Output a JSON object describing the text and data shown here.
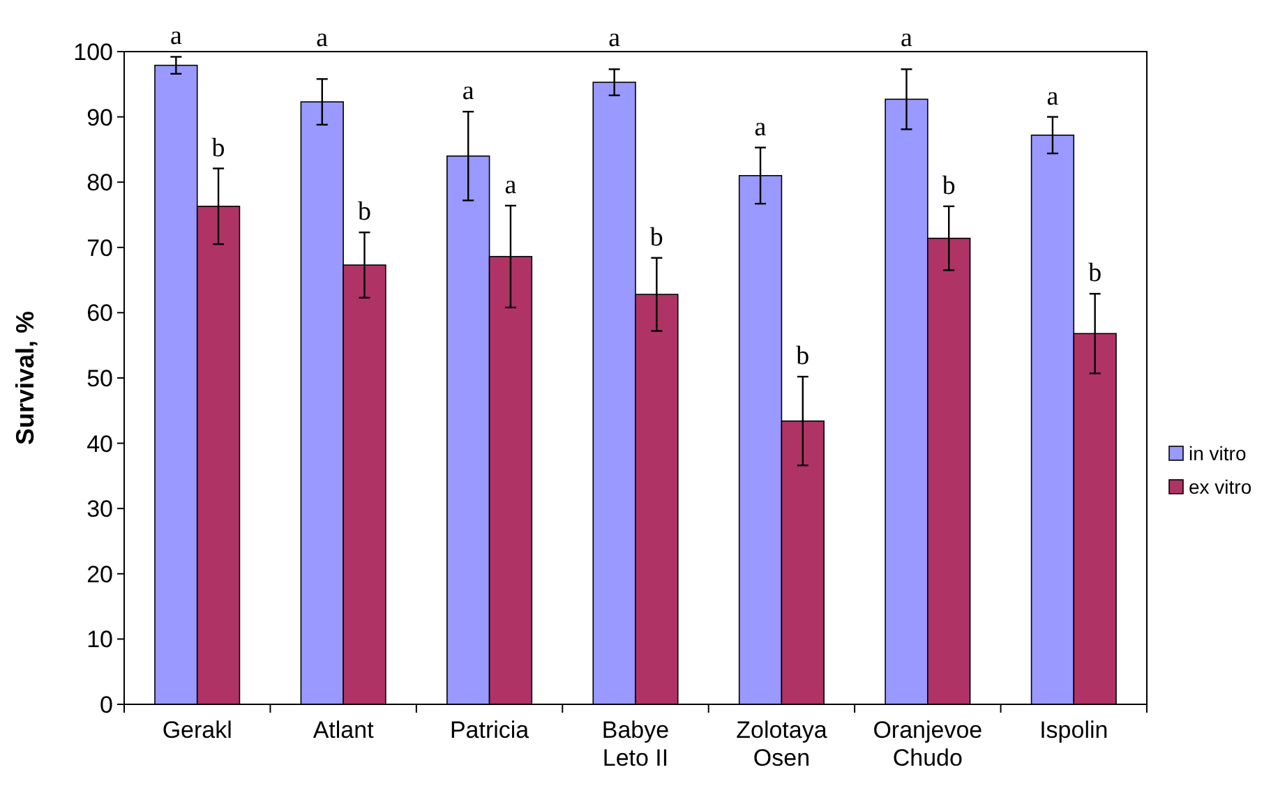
{
  "chart_data": {
    "type": "bar",
    "ylabel": "Survival, %",
    "categories": [
      "Gerakl",
      "Atlant",
      "Patricia",
      "Babye\nLeto II",
      "Zolotaya\nOsen",
      "Oranjevoe\nChudo",
      "Ispolin"
    ],
    "series": [
      {
        "name": "in vitro",
        "color": "#9999ff",
        "values": [
          97.9,
          92.3,
          84,
          95.3,
          81,
          92.7,
          87.2
        ],
        "errors": [
          1.3,
          3.5,
          6.8,
          2,
          4.3,
          4.6,
          2.8
        ]
      },
      {
        "name": "ex vitro",
        "color": "#b03366",
        "values": [
          76.3,
          67.3,
          68.6,
          62.8,
          43.4,
          71.4,
          56.8
        ],
        "errors": [
          5.8,
          5,
          7.8,
          5.6,
          6.8,
          4.9,
          6.1
        ]
      }
    ],
    "annotations": [
      "a",
      "b",
      "a",
      "b",
      "a",
      "a",
      "a",
      "b",
      "a",
      "b",
      "a",
      "b",
      "a",
      "b"
    ],
    "ylim": [
      0,
      100
    ],
    "yticks": [
      0,
      10,
      20,
      30,
      40,
      50,
      60,
      70,
      80,
      90,
      100
    ],
    "grid": false,
    "legend": "right"
  }
}
